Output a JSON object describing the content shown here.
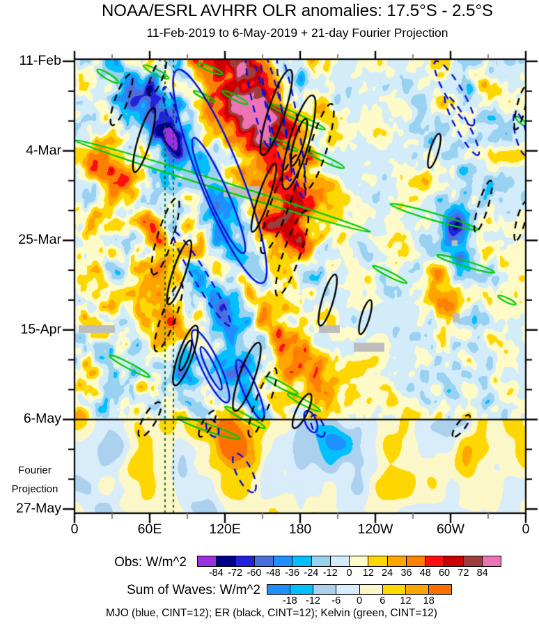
{
  "title": "NOAA/ESRL AVHRR OLR anomalies: 17.5°S - 2.5°S",
  "subtitle": "11-Feb-2019 to 6-May-2019 + 21-day Fourier Projection",
  "chart_data": {
    "type": "heatmap",
    "title": "NOAA/ESRL AVHRR OLR anomalies: 17.5°S - 2.5°S",
    "subtitle": "11-Feb-2019 to 6-May-2019 + 21-day Fourier Projection",
    "x_axis": {
      "tick_labels": [
        "0",
        "60E",
        "120E",
        "180",
        "120W",
        "60W",
        "0"
      ],
      "tick_lons": [
        0,
        60,
        120,
        180,
        240,
        300,
        360
      ],
      "minor_step_deg": 30,
      "range_deg": [
        0,
        360
      ]
    },
    "y_axis": {
      "tick_labels": [
        "11-Feb",
        "4-Mar",
        "25-Mar",
        "15-Apr",
        "6-May",
        "27-May"
      ],
      "tick_days": [
        0,
        21,
        42,
        63,
        84,
        105
      ],
      "minor_step_days": 7,
      "range_days": [
        0,
        106
      ]
    },
    "obs_colorbar": {
      "label": "Obs: W/m^2",
      "levels": [
        -84,
        -72,
        -60,
        -48,
        -36,
        -24,
        -12,
        0,
        12,
        24,
        36,
        48,
        60,
        72,
        84
      ],
      "colors": [
        "#9b30e0",
        "#00008b",
        "#2222dd",
        "#4d6fdd",
        "#1e90ff",
        "#00bfff",
        "#99d1f0",
        "#d2ecfa",
        "#fffbc8",
        "#ffd700",
        "#ffa500",
        "#ff8000",
        "#ff0f0f",
        "#cc0000",
        "#a03c3c",
        "#ec74b4"
      ]
    },
    "waves_colorbar": {
      "label": "Sum of Waves: W/m^2",
      "levels": [
        -18,
        -12,
        -6,
        0,
        6,
        12,
        18
      ],
      "colors": [
        "#1e90ff",
        "#00bfff",
        "#abd1ef",
        "#d8ecfa",
        "#fcf7c8",
        "#ffd700",
        "#ffa500",
        "#ff7000"
      ]
    },
    "contour_note": "MJO (blue, CINT=12); ER (black, CINT=12); Kelvin (green, CINT=12)",
    "projection_divider_day": 84,
    "projection_label_lines": [
      "Fourier",
      "Projection"
    ],
    "reference_lons": [
      72.2,
      78.9
    ],
    "colors": {
      "mjo_contour": "#0010dd",
      "er_contour": "#000000",
      "kelvin_contour": "#00cc00",
      "reference_line": "#006600",
      "missing_data": "#bdbdbd",
      "minor_tick": "#808080",
      "frame": "#000000"
    },
    "missing_data_patches": [
      {
        "lon1": 119,
        "lon2": 150,
        "day1": 29.3,
        "day2": 31.8
      },
      {
        "lon1": 3.3,
        "lon2": 32.2,
        "day1": 61.9,
        "day2": 63.7
      },
      {
        "lon1": 195,
        "lon2": 211.7,
        "day1": 61.9,
        "day2": 63.7
      },
      {
        "lon1": 222.8,
        "lon2": 247.2,
        "day1": 66,
        "day2": 68.1
      },
      {
        "lon1": 301,
        "lon2": 305.6,
        "day1": 42,
        "day2": 43.3
      },
      {
        "lon1": 301.7,
        "lon2": 307.2,
        "day1": 59.1,
        "day2": 61.2
      }
    ],
    "anomaly_centers": [
      {
        "lon": 140,
        "day": 8,
        "amp": 52,
        "rlon": 30,
        "rday": 9
      },
      {
        "lon": 78,
        "day": 19,
        "amp": -70,
        "rlon": 6,
        "rday": 3.5
      },
      {
        "lon": 170,
        "day": 5,
        "amp": -48,
        "rlon": 10,
        "rday": 4
      },
      {
        "lon": 88,
        "day": 72,
        "amp": -65,
        "rlon": 10,
        "rday": 5
      },
      {
        "lon": 160,
        "day": 38,
        "amp": 34,
        "rlon": 18,
        "rday": 10
      },
      {
        "lon": 45,
        "day": 12,
        "amp": -30,
        "rlon": 12,
        "rday": 6
      },
      {
        "lon": 125,
        "day": 60,
        "amp": -28,
        "rlon": 9,
        "rday": 4
      },
      {
        "lon": 305,
        "day": 39,
        "amp": -50,
        "rlon": 7,
        "rday": 4
      },
      {
        "lon": 308,
        "day": 48,
        "amp": -45,
        "rlon": 6,
        "rday": 3
      },
      {
        "lon": 295,
        "day": 57,
        "amp": 35,
        "rlon": 8,
        "rday": 5
      }
    ],
    "propagation_bands": [
      {
        "lon1": 60,
        "day1": 8,
        "lon2": 150,
        "day2": 52,
        "amp": -36,
        "sigma": 13
      },
      {
        "lon1": 118,
        "day1": 0,
        "lon2": 185,
        "day2": 40,
        "amp": 36,
        "sigma": 15
      },
      {
        "lon1": 22,
        "day1": 22,
        "lon2": 95,
        "day2": 68,
        "amp": 22,
        "sigma": 14
      },
      {
        "lon1": 95,
        "day1": 55,
        "lon2": 150,
        "day2": 84,
        "amp": -26,
        "sigma": 11
      },
      {
        "lon1": 152,
        "day1": 55,
        "lon2": 196,
        "day2": 84,
        "amp": 26,
        "sigma": 13
      }
    ],
    "projection_centers": [
      {
        "lon": 76,
        "day": 92,
        "amp": 9,
        "rlon": 5,
        "rday": 11
      },
      {
        "lon": 124,
        "day": 88,
        "amp": 20,
        "rlon": 9,
        "rday": 4
      },
      {
        "lon": 133,
        "day": 97,
        "amp": 16,
        "rlon": 10,
        "rday": 6
      },
      {
        "lon": 95,
        "day": 87,
        "amp": 12,
        "rlon": 8,
        "rday": 3
      },
      {
        "lon": 205,
        "day": 88,
        "amp": -13,
        "rlon": 10,
        "rday": 4
      },
      {
        "lon": 300,
        "day": 87,
        "amp": -9,
        "rlon": 12,
        "rday": 4
      },
      {
        "lon": 320,
        "day": 97,
        "amp": 8,
        "rlon": 18,
        "rday": 7
      },
      {
        "lon": 25,
        "day": 99,
        "amp": -7,
        "rlon": 14,
        "rday": 8
      }
    ],
    "contours": {
      "mjo_solid": [
        [
          82,
          2,
          150,
          52,
          30
        ],
        [
          95,
          18,
          135,
          45,
          14
        ],
        [
          95,
          63,
          122,
          80,
          13
        ],
        [
          101,
          67,
          117,
          77,
          6
        ],
        [
          130,
          70,
          150,
          84,
          10
        ],
        [
          185,
          82,
          192,
          87,
          8
        ]
      ],
      "mjo_dashed": [
        [
          138,
          -2,
          155,
          20,
          9
        ],
        [
          150,
          -2,
          172,
          28,
          10
        ],
        [
          163,
          -2,
          183,
          32,
          10
        ],
        [
          288,
          0,
          318,
          15,
          12
        ],
        [
          296,
          8,
          322,
          22,
          9
        ],
        [
          72,
          6,
          80,
          15,
          7
        ],
        [
          79,
          40,
          124,
          62,
          10
        ],
        [
          128,
          92,
          143,
          101,
          11
        ],
        [
          107,
          84,
          113,
          88,
          8
        ],
        [
          190,
          83,
          198,
          88,
          8
        ],
        [
          352,
          12,
          360,
          22,
          8
        ]
      ],
      "er_solid": [
        [
          63,
          11,
          48,
          26,
          9
        ],
        [
          172,
          2,
          150,
          22,
          12
        ],
        [
          190,
          8,
          168,
          30,
          14,
          1
        ],
        [
          160,
          24,
          142,
          40,
          8
        ],
        [
          291,
          17,
          283,
          25,
          6
        ],
        [
          208,
          50,
          196,
          62,
          8
        ],
        [
          92,
          42,
          75,
          57,
          9
        ],
        [
          97,
          62,
          80,
          76,
          10,
          1
        ],
        [
          147,
          66,
          128,
          82,
          11
        ],
        [
          188,
          78,
          175,
          86,
          8
        ],
        [
          236,
          56,
          228,
          64,
          6
        ]
      ],
      "er_dashed": [
        [
          45,
          3,
          30,
          15,
          9
        ],
        [
          72,
          -1,
          60,
          8,
          8
        ],
        [
          205,
          10,
          185,
          30,
          12
        ],
        [
          178,
          22,
          150,
          45,
          13
        ],
        [
          185,
          35,
          162,
          55,
          12
        ],
        [
          332,
          28,
          320,
          40,
          7
        ],
        [
          360,
          6,
          352,
          16,
          6
        ],
        [
          360,
          33,
          352,
          42,
          6
        ],
        [
          82,
          32,
          63,
          50,
          11
        ],
        [
          85,
          52,
          65,
          68,
          10
        ],
        [
          160,
          72,
          140,
          88,
          10
        ],
        [
          68,
          80,
          52,
          88,
          9
        ],
        [
          112,
          82,
          100,
          88,
          7
        ],
        [
          315,
          83,
          302,
          88,
          6
        ]
      ],
      "kelvin": [
        [
          18,
          2,
          35,
          5,
          4
        ],
        [
          55,
          1,
          75,
          4,
          4
        ],
        [
          98,
          0.5,
          118,
          3,
          3.5
        ],
        [
          95,
          7,
          112,
          9.5,
          3
        ],
        [
          118,
          7,
          138,
          10,
          3.5
        ],
        [
          0,
          18.5,
          236,
          40,
          6
        ],
        [
          155,
          10,
          200,
          16,
          4
        ],
        [
          185,
          21,
          215,
          25,
          4
        ],
        [
          252,
          33.5,
          322,
          39.5,
          5
        ],
        [
          289,
          45.5,
          335,
          49.5,
          4
        ],
        [
          238,
          48,
          265,
          52,
          3.5
        ],
        [
          28,
          69,
          60,
          74,
          4
        ],
        [
          120,
          81,
          152,
          86,
          4
        ],
        [
          82,
          83.5,
          132,
          88.5,
          5
        ],
        [
          352,
          13,
          360,
          15,
          3
        ],
        [
          338,
          55,
          352,
          57,
          3
        ],
        [
          155,
          18,
          178,
          21,
          3.5
        ],
        [
          152,
          74,
          178,
          78,
          4
        ],
        [
          170,
          78,
          196,
          82,
          4
        ]
      ]
    }
  }
}
